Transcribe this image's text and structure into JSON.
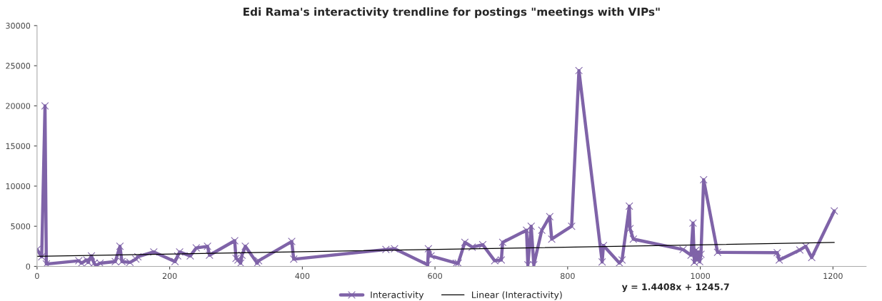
{
  "chart_data": {
    "type": "line",
    "title": "Edi Rama's interactivity trendline for postings \"meetings with VIPs\"",
    "xlim": [
      0,
      1250
    ],
    "xticks": [
      0,
      200,
      400,
      600,
      800,
      1000,
      1200
    ],
    "ylim": [
      0,
      30000
    ],
    "yticks": [
      0,
      5000,
      10000,
      15000,
      20000,
      25000,
      30000
    ],
    "grid": false,
    "legend": "bottom",
    "annotations": [
      "y = 1.4408x + 1245.7"
    ],
    "series": [
      {
        "name": "Interactivity",
        "color": "#7f63a8",
        "marker": "cross",
        "line_style": "solid",
        "x": [
          0,
          7,
          12,
          14,
          63,
          67,
          75,
          77,
          82,
          86,
          89,
          95,
          118,
          125,
          128,
          140,
          149,
          152,
          176,
          208,
          212,
          215,
          231,
          240,
          257,
          260,
          298,
          300,
          303,
          307,
          309,
          314,
          332,
          334,
          384,
          387,
          526,
          539,
          589,
          590,
          594,
          632,
          635,
          645,
          656,
          672,
          690,
          700,
          702,
          738,
          740,
          745,
          749,
          761,
          773,
          776,
          806,
          817,
          852,
          854,
          878,
          882,
          893,
          894,
          899,
          974,
          986,
          989,
          991,
          993,
          995,
          997,
          999,
          1001,
          1005,
          1026,
          1116,
          1119,
          1150,
          1159,
          1168,
          1202
        ],
        "values": [
          2100,
          1200,
          20000,
          300,
          700,
          400,
          800,
          500,
          1300,
          400,
          100,
          400,
          600,
          2500,
          600,
          500,
          900,
          1200,
          1800,
          600,
          1300,
          1800,
          1300,
          2300,
          2500,
          1400,
          3200,
          1000,
          800,
          400,
          1400,
          2500,
          400,
          700,
          3100,
          900,
          2100,
          2200,
          200,
          2200,
          1300,
          400,
          400,
          3000,
          2400,
          2700,
          700,
          800,
          3000,
          4500,
          200,
          5000,
          200,
          4500,
          6200,
          3400,
          5000,
          24400,
          550,
          2600,
          430,
          800,
          7500,
          4700,
          3400,
          2100,
          1400,
          5400,
          500,
          2000,
          800,
          1800,
          600,
          1500,
          10800,
          1750,
          1700,
          800,
          2050,
          2500,
          1100,
          6900
        ]
      },
      {
        "name": "Linear (Interactivity)",
        "color": "#000000",
        "marker": "none",
        "line_style": "solid",
        "x": [
          0,
          1202
        ],
        "values": [
          1246,
          2978
        ]
      }
    ]
  }
}
